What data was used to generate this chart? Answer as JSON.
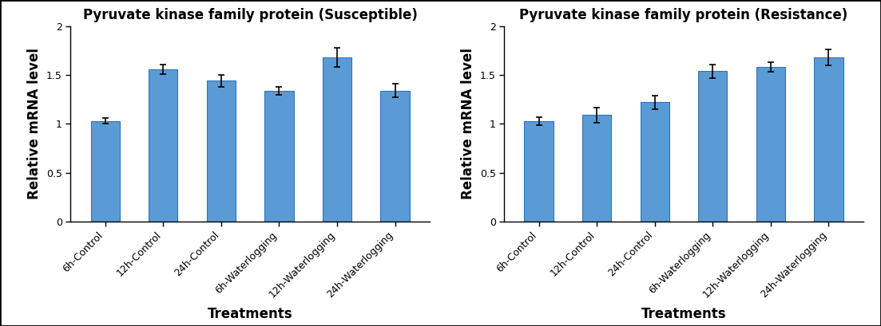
{
  "left_title": "Pyruvate kinase family protein (Susceptible)",
  "right_title": "Pyruvate kinase family protein (Resistance)",
  "xlabel": "Treatments",
  "ylabel": "Relative mRNA level",
  "categories": [
    "6h-Control",
    "12h-Control",
    "24h-Control",
    "6h-Waterlogging",
    "12h-Waterlogging",
    "24h-Waterlogging"
  ],
  "left_values": [
    1.03,
    1.56,
    1.44,
    1.34,
    1.68,
    1.34
  ],
  "left_errors": [
    0.03,
    0.05,
    0.06,
    0.04,
    0.1,
    0.07
  ],
  "right_values": [
    1.03,
    1.09,
    1.22,
    1.54,
    1.58,
    1.68
  ],
  "right_errors": [
    0.04,
    0.08,
    0.07,
    0.07,
    0.05,
    0.08
  ],
  "bar_color": "#5B9BD5",
  "bar_edge_color": "#2E75B6",
  "ylim": [
    0,
    2.0
  ],
  "yticks": [
    0,
    0.5,
    1.0,
    1.5,
    2.0
  ],
  "ytick_labels": [
    "0",
    "0.5",
    "1",
    "1.5",
    "2"
  ],
  "background_color": "#ffffff",
  "title_fontsize": 12,
  "axis_label_fontsize": 12,
  "tick_fontsize": 9,
  "bar_width": 0.5,
  "figure_bg": "#ffffff"
}
